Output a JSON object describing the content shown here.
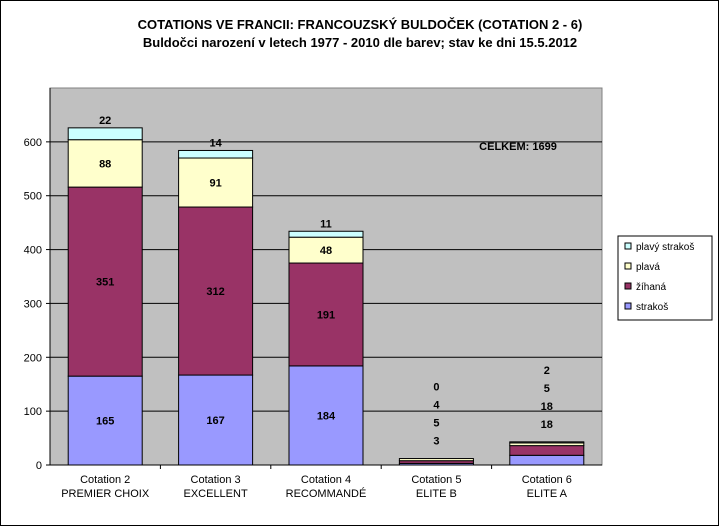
{
  "chart_data": {
    "type": "bar",
    "stacked": true,
    "title": "COTATIONS  VE FRANCII:  FRANCOUZSKÝ  BULDOČEK  (COTATION  2 - 6)",
    "subtitle": "Buldočci narození v letech 1977 - 2010 dle barev; stav ke dni 15.5.2012",
    "categories": [
      [
        "Cotation 2",
        "PREMIER CHOIX"
      ],
      [
        "Cotation 3",
        "EXCELLENT"
      ],
      [
        "Cotation 4",
        "RECOMMANDÉ"
      ],
      [
        "Cotation 5",
        "ELITE B"
      ],
      [
        "Cotation 6",
        "ELITE A"
      ]
    ],
    "series": [
      {
        "name": "strakoš",
        "color": "#9999ff",
        "values": [
          165,
          167,
          184,
          3,
          18
        ]
      },
      {
        "name": "žíhaná",
        "color": "#993366",
        "values": [
          351,
          312,
          191,
          5,
          18
        ]
      },
      {
        "name": "plavá",
        "color": "#ffffcc",
        "values": [
          88,
          91,
          48,
          4,
          5
        ]
      },
      {
        "name": "plavý strakoš",
        "color": "#ccffff",
        "values": [
          22,
          14,
          11,
          0,
          2
        ]
      }
    ],
    "ylim": [
      0,
      700
    ],
    "yticks": [
      0,
      100,
      200,
      300,
      400,
      500,
      600
    ],
    "grid": true,
    "plot_background": "#c0c0c0",
    "annotation": "CELKEM:  1699",
    "legend_position": "right"
  }
}
